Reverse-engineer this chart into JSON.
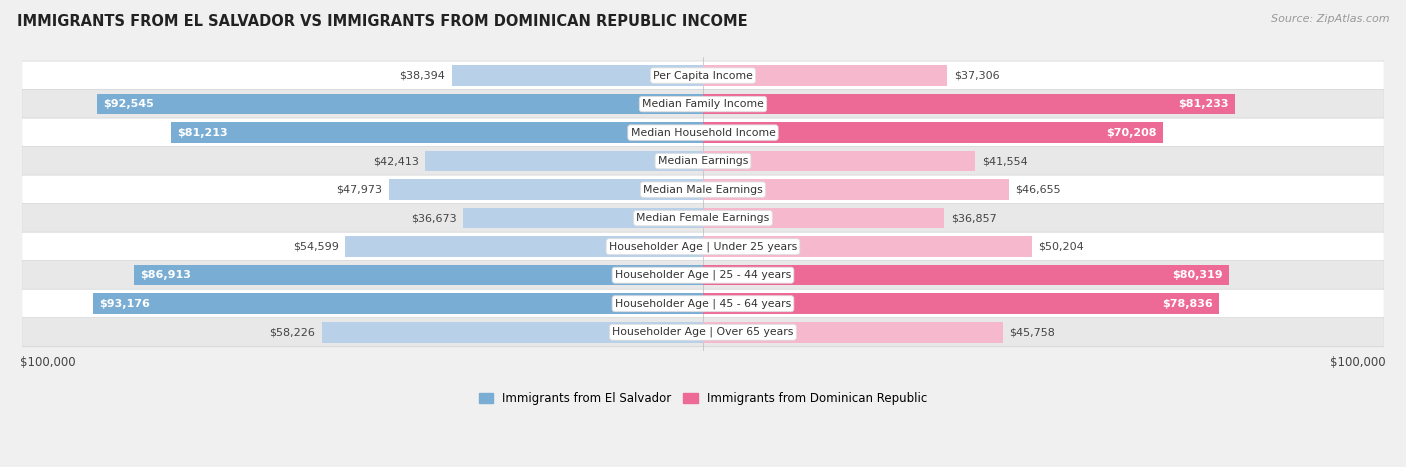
{
  "title": "IMMIGRANTS FROM EL SALVADOR VS IMMIGRANTS FROM DOMINICAN REPUBLIC INCOME",
  "source": "Source: ZipAtlas.com",
  "categories": [
    "Per Capita Income",
    "Median Family Income",
    "Median Household Income",
    "Median Earnings",
    "Median Male Earnings",
    "Median Female Earnings",
    "Householder Age | Under 25 years",
    "Householder Age | 25 - 44 years",
    "Householder Age | 45 - 64 years",
    "Householder Age | Over 65 years"
  ],
  "el_salvador_values": [
    38394,
    92545,
    81213,
    42413,
    47973,
    36673,
    54599,
    86913,
    93176,
    58226
  ],
  "dominican_values": [
    37306,
    81233,
    70208,
    41554,
    46655,
    36857,
    50204,
    80319,
    78836,
    45758
  ],
  "el_salvador_labels": [
    "$38,394",
    "$92,545",
    "$81,213",
    "$42,413",
    "$47,973",
    "$36,673",
    "$54,599",
    "$86,913",
    "$93,176",
    "$58,226"
  ],
  "dominican_labels": [
    "$37,306",
    "$81,233",
    "$70,208",
    "$41,554",
    "$46,655",
    "$36,857",
    "$50,204",
    "$80,319",
    "$78,836",
    "$45,758"
  ],
  "el_salvador_color_light": "#b8d0e8",
  "el_salvador_color_dark": "#7aadd4",
  "dominican_color_light": "#f5b8cc",
  "dominican_color_dark": "#ee6a96",
  "max_value": 100000,
  "bg_color": "#f0f0f0",
  "row_colors": [
    "#ffffff",
    "#e8e8e8"
  ],
  "label_inside_threshold": 60000,
  "legend_el_salvador": "Immigrants from El Salvador",
  "legend_dominican": "Immigrants from Dominican Republic"
}
